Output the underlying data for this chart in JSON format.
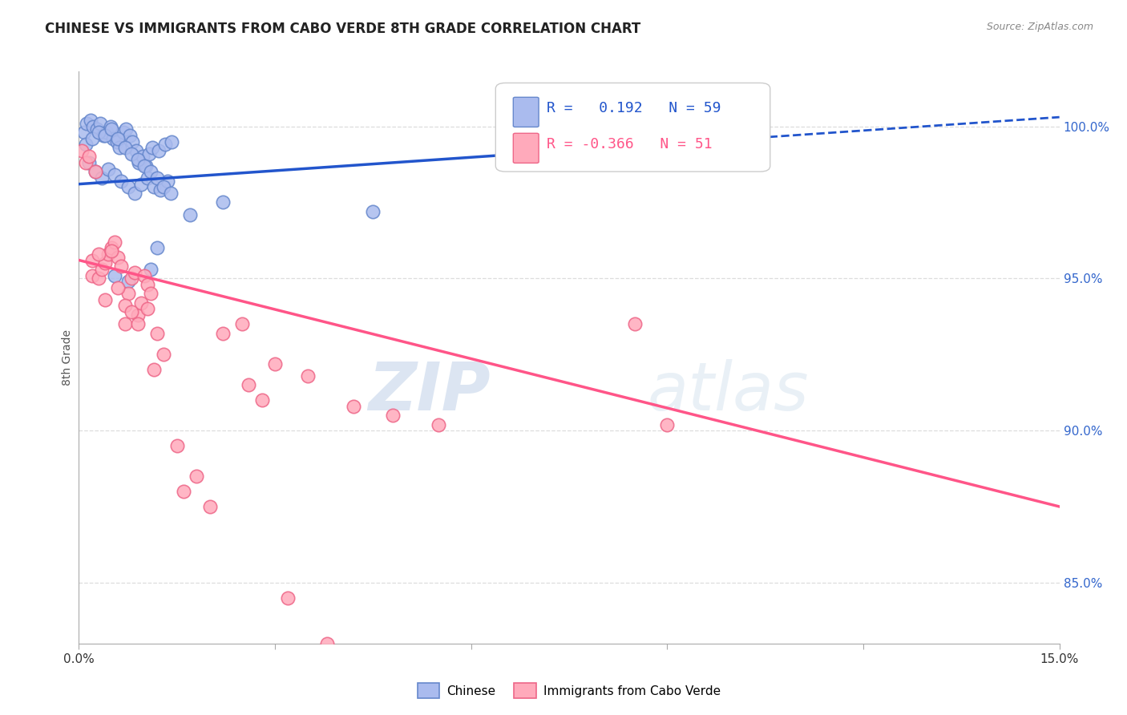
{
  "title": "CHINESE VS IMMIGRANTS FROM CABO VERDE 8TH GRADE CORRELATION CHART",
  "source": "Source: ZipAtlas.com",
  "ylabel": "8th Grade",
  "xmin": 0.0,
  "xmax": 15.0,
  "ymin": 83.0,
  "ymax": 101.8,
  "yticks": [
    85.0,
    90.0,
    95.0,
    100.0
  ],
  "ytick_labels": [
    "85.0%",
    "90.0%",
    "95.0%",
    "100.0%"
  ],
  "background_color": "#ffffff",
  "grid_color": "#dddddd",
  "watermark_text": "ZIP",
  "watermark_text2": "atlas",
  "blue_R": 0.192,
  "blue_N": 59,
  "pink_R": -0.366,
  "pink_N": 51,
  "blue_line_x0": 0.0,
  "blue_line_y0": 98.1,
  "blue_line_x1": 15.0,
  "blue_line_y1": 100.3,
  "blue_solid_x1": 7.5,
  "blue_line_color": "#2255cc",
  "pink_line_x0": 0.0,
  "pink_line_y0": 95.6,
  "pink_line_x1": 15.0,
  "pink_line_y1": 87.5,
  "pink_line_color": "#ff5588",
  "chinese_color": "#aabbee",
  "chinese_edge_color": "#6688cc",
  "cabo_color": "#ffaabb",
  "cabo_edge_color": "#ee6688",
  "chinese_x": [
    0.08,
    0.12,
    0.18,
    0.22,
    0.28,
    0.32,
    0.38,
    0.42,
    0.48,
    0.52,
    0.58,
    0.62,
    0.68,
    0.72,
    0.78,
    0.82,
    0.88,
    0.92,
    0.98,
    1.02,
    1.08,
    1.12,
    1.22,
    1.32,
    1.42,
    0.15,
    0.25,
    0.35,
    0.45,
    0.55,
    0.65,
    0.75,
    0.85,
    0.95,
    1.05,
    1.15,
    1.25,
    1.35,
    0.1,
    0.2,
    0.3,
    0.4,
    0.5,
    0.6,
    0.7,
    0.8,
    0.9,
    1.0,
    1.1,
    1.2,
    1.3,
    1.4,
    0.55,
    1.1,
    0.75,
    1.2,
    2.2,
    1.7,
    4.5
  ],
  "chinese_y": [
    99.8,
    100.1,
    100.2,
    100.0,
    99.9,
    100.1,
    99.7,
    99.8,
    100.0,
    99.6,
    99.5,
    99.3,
    99.8,
    99.9,
    99.7,
    99.5,
    99.2,
    98.8,
    99.0,
    98.7,
    99.1,
    99.3,
    99.2,
    99.4,
    99.5,
    98.8,
    98.5,
    98.3,
    98.6,
    98.4,
    98.2,
    98.0,
    97.8,
    98.1,
    98.3,
    98.0,
    97.9,
    98.2,
    99.4,
    99.6,
    99.8,
    99.7,
    99.9,
    99.6,
    99.3,
    99.1,
    98.9,
    98.7,
    98.5,
    98.3,
    98.0,
    97.8,
    95.1,
    95.3,
    94.9,
    96.0,
    97.5,
    97.1,
    97.2
  ],
  "cabo_x": [
    0.05,
    0.1,
    0.15,
    0.2,
    0.25,
    0.3,
    0.35,
    0.4,
    0.45,
    0.5,
    0.55,
    0.6,
    0.65,
    0.7,
    0.75,
    0.8,
    0.85,
    0.9,
    0.95,
    1.0,
    1.05,
    1.1,
    1.2,
    1.3,
    0.2,
    0.3,
    0.4,
    0.5,
    0.6,
    0.7,
    0.8,
    0.9,
    1.05,
    1.15,
    2.5,
    2.6,
    4.8,
    5.5,
    8.5,
    9.0,
    3.0,
    3.5,
    2.8,
    4.2,
    2.2,
    1.8,
    2.0,
    1.6,
    1.5,
    3.8,
    3.2
  ],
  "cabo_y": [
    99.2,
    98.8,
    99.0,
    95.1,
    98.5,
    95.0,
    95.3,
    95.5,
    95.8,
    96.0,
    96.2,
    95.7,
    95.4,
    93.5,
    94.5,
    95.0,
    95.2,
    93.8,
    94.2,
    95.1,
    94.8,
    94.5,
    93.2,
    92.5,
    95.6,
    95.8,
    94.3,
    95.9,
    94.7,
    94.1,
    93.9,
    93.5,
    94.0,
    92.0,
    93.5,
    91.5,
    90.5,
    90.2,
    93.5,
    90.2,
    92.2,
    91.8,
    91.0,
    90.8,
    93.2,
    88.5,
    87.5,
    88.0,
    89.5,
    83.0,
    84.5
  ]
}
